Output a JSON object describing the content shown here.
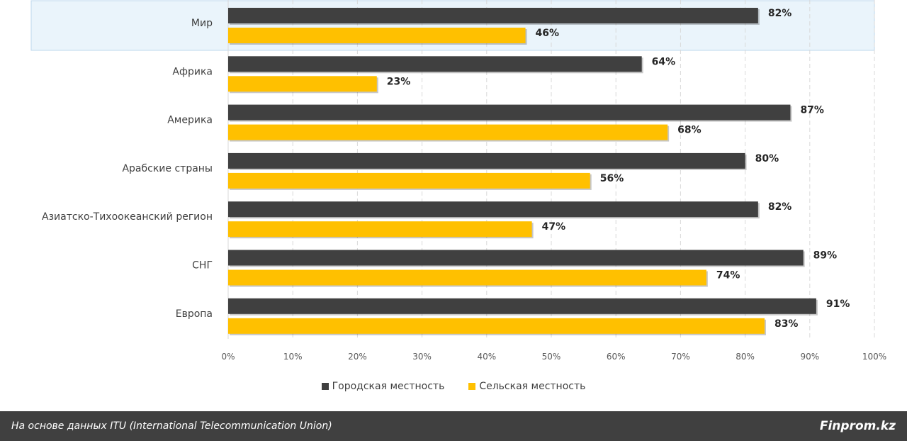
{
  "chart_data": {
    "type": "bar",
    "orientation": "horizontal",
    "categories": [
      "Мир",
      "Африка",
      "Америка",
      "Арабские страны",
      "Азиатско-Тихоокеанский регион",
      "СНГ",
      "Европа"
    ],
    "series": [
      {
        "name": "Городская местность",
        "color": "#404040",
        "values": [
          82,
          64,
          87,
          80,
          82,
          89,
          91
        ]
      },
      {
        "name": "Сельская местность",
        "color": "#FFC000",
        "values": [
          46,
          23,
          68,
          56,
          47,
          74,
          83
        ]
      }
    ],
    "data_labels": [
      [
        "82%",
        "64%",
        "87%",
        "80%",
        "82%",
        "89%",
        "91%"
      ],
      [
        "46%",
        "23%",
        "68%",
        "56%",
        "47%",
        "74%",
        "83%"
      ]
    ],
    "xlim": [
      0,
      100
    ],
    "x_ticks": [
      "0%",
      "10%",
      "20%",
      "30%",
      "40%",
      "50%",
      "60%",
      "70%",
      "80%",
      "90%",
      "100%"
    ],
    "grid": "vertical dashed",
    "legend_position": "bottom",
    "highlighted_category": "Мир",
    "highlight_color": "#EAF4FB"
  },
  "footer": {
    "source": "На основе данных ITU (International Telecommunication Union)",
    "brand": "Finprom.kz"
  }
}
